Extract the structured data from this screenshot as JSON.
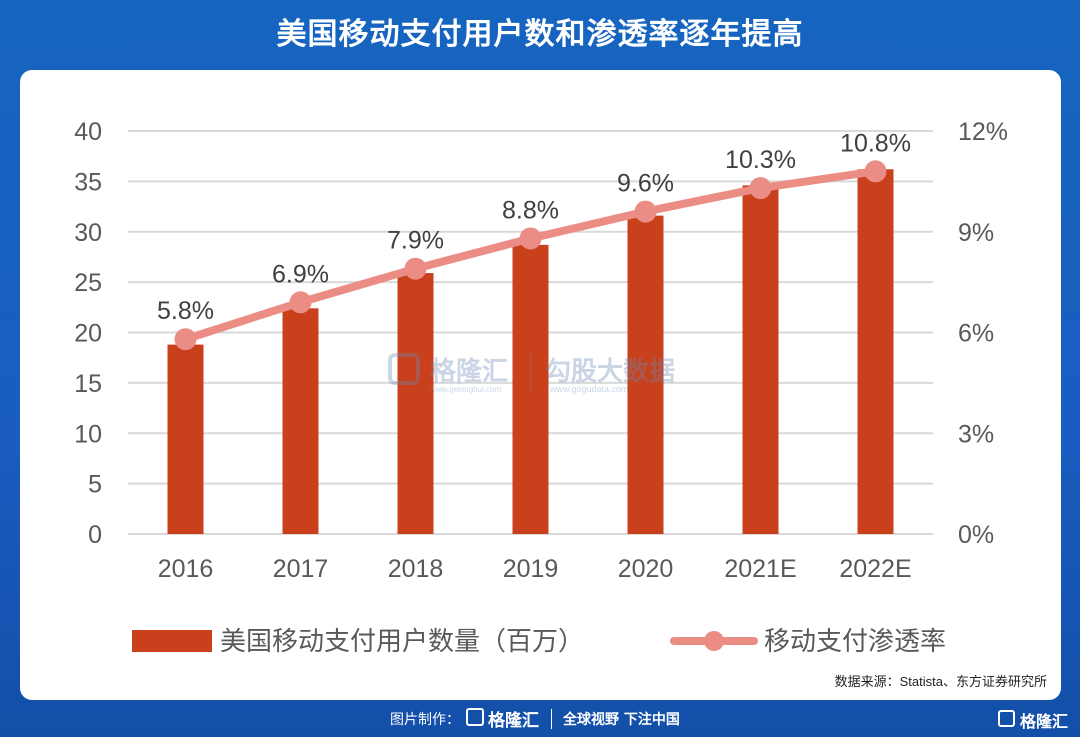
{
  "header": {
    "title": "美国移动支付用户数和渗透率逐年提高"
  },
  "source": "数据来源：Statista、东方证券研究所",
  "watermark": {
    "left": "格隆汇",
    "left_url": "www.gelonghui.com",
    "right": "勾股大数据",
    "right_url": "www.gogudata.com"
  },
  "footer": {
    "made_by": "图片制作：",
    "brand": "格隆汇",
    "slogan": "全球视野 下注中国",
    "corner_brand": "格隆汇"
  },
  "colors": {
    "bar": "#c8401c",
    "line": "#ec8d85",
    "axis_text": "#595959",
    "grid": "#d9d9d9"
  },
  "chart_data": {
    "type": "bar",
    "categories": [
      "2016",
      "2017",
      "2018",
      "2019",
      "2020",
      "2021E",
      "2022E"
    ],
    "series": [
      {
        "name": "美国移动支付用户数量（百万）",
        "type": "bar",
        "axis": "left",
        "values": [
          18.8,
          22.4,
          25.9,
          28.7,
          31.6,
          34.6,
          36.2
        ]
      },
      {
        "name": "移动支付渗透率",
        "type": "line",
        "axis": "right",
        "values": [
          5.8,
          6.9,
          7.9,
          8.8,
          9.6,
          10.3,
          10.8
        ],
        "labels": [
          "5.8%",
          "6.9%",
          "7.9%",
          "8.8%",
          "9.6%",
          "10.3%",
          "10.8%"
        ]
      }
    ],
    "y_left": {
      "ylim": [
        0,
        40
      ],
      "ticks": [
        "0",
        "5",
        "10",
        "15",
        "20",
        "25",
        "30",
        "35",
        "40"
      ]
    },
    "y_right": {
      "ylim": [
        0,
        12
      ],
      "ticks": [
        "0%",
        "3%",
        "6%",
        "9%",
        "12%"
      ]
    },
    "grid": true,
    "legend": "bottom"
  }
}
